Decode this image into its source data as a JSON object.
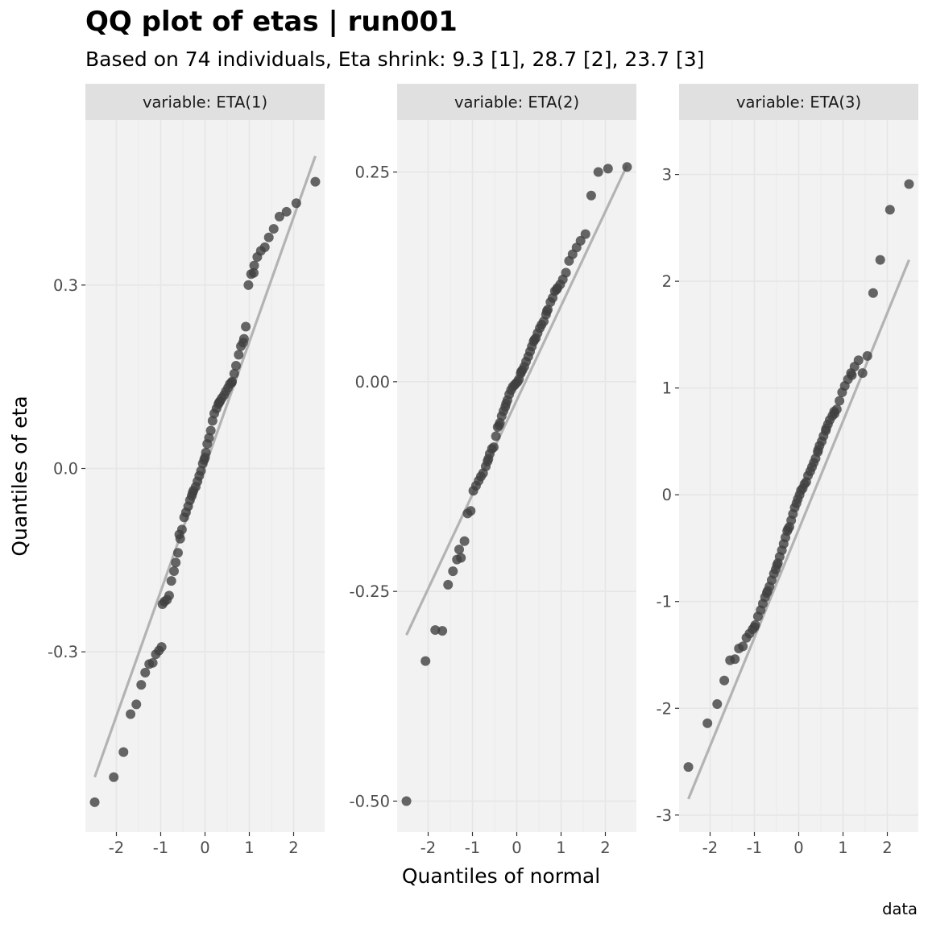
{
  "title": "QQ plot of etas | run001",
  "subtitle": "Based on 74 individuals, Eta shrink: 9.3 [1], 28.7 [2], 23.7 [3]",
  "caption": "data",
  "colors": {
    "panel_bg": "#f2f2f2",
    "strip_bg": "#e0e0e0",
    "grid": "#e6e6e6",
    "point": "#404040",
    "line": "#b3b3b3"
  },
  "chart_data": {
    "type": "scatter",
    "xlabel": "Quantiles of normal",
    "ylabel": "Quantiles of eta",
    "grid": true,
    "facets": [
      {
        "strip": "variable: ETA(1)",
        "xlim": [
          -2.7,
          2.7
        ],
        "ylim": [
          -0.595,
          0.57
        ],
        "xticks": [
          -2,
          -1,
          0,
          1,
          2
        ],
        "xtick_labels": [
          "-2",
          "-1",
          "0",
          "1",
          "2"
        ],
        "yticks": [
          -0.3,
          0.0,
          0.3
        ],
        "ytick_labels": [
          "-0.3",
          "0.0",
          "0.3"
        ],
        "reference_line": [
          [
            -2.49,
            -0.505
          ],
          [
            2.49,
            0.511
          ]
        ],
        "points": [
          [
            -2.49,
            -0.546
          ],
          [
            -2.06,
            -0.505
          ],
          [
            -1.84,
            -0.464
          ],
          [
            -1.68,
            -0.402
          ],
          [
            -1.55,
            -0.386
          ],
          [
            -1.44,
            -0.354
          ],
          [
            -1.35,
            -0.334
          ],
          [
            -1.26,
            -0.32
          ],
          [
            -1.18,
            -0.318
          ],
          [
            -1.11,
            -0.304
          ],
          [
            -1.04,
            -0.298
          ],
          [
            -0.98,
            -0.292
          ],
          [
            -0.92,
            -0.218
          ],
          [
            -0.86,
            -0.215
          ],
          [
            -0.81,
            -0.208
          ],
          [
            -0.76,
            -0.184
          ],
          [
            -0.7,
            -0.168
          ],
          [
            -0.66,
            -0.154
          ],
          [
            -0.61,
            -0.138
          ],
          [
            -0.56,
            -0.115
          ],
          [
            -0.52,
            -0.1
          ],
          [
            -0.47,
            -0.08
          ],
          [
            -0.43,
            -0.072
          ],
          [
            -0.38,
            -0.062
          ],
          [
            -0.34,
            -0.052
          ],
          [
            -0.3,
            -0.045
          ],
          [
            -0.26,
            -0.036
          ],
          [
            -0.21,
            -0.03
          ],
          [
            -0.17,
            -0.021
          ],
          [
            -0.13,
            -0.012
          ],
          [
            -0.09,
            -0.004
          ],
          [
            -0.05,
            0.008
          ],
          [
            -0.02,
            0.014
          ],
          [
            0.02,
            0.026
          ],
          [
            0.05,
            0.04
          ],
          [
            0.09,
            0.05
          ],
          [
            0.13,
            0.062
          ],
          [
            0.17,
            0.078
          ],
          [
            0.21,
            0.09
          ],
          [
            0.26,
            0.098
          ],
          [
            0.3,
            0.105
          ],
          [
            0.34,
            0.11
          ],
          [
            0.38,
            0.115
          ],
          [
            0.43,
            0.12
          ],
          [
            0.47,
            0.126
          ],
          [
            0.52,
            0.132
          ],
          [
            0.56,
            0.138
          ],
          [
            0.61,
            0.142
          ],
          [
            0.66,
            0.155
          ],
          [
            0.7,
            0.168
          ],
          [
            0.76,
            0.186
          ],
          [
            0.81,
            0.2
          ],
          [
            0.86,
            0.206
          ],
          [
            0.92,
            0.232
          ],
          [
            0.98,
            0.3
          ],
          [
            1.04,
            0.318
          ],
          [
            1.11,
            0.332
          ],
          [
            1.18,
            0.346
          ],
          [
            1.26,
            0.356
          ],
          [
            1.35,
            0.362
          ],
          [
            1.44,
            0.378
          ],
          [
            1.55,
            0.392
          ],
          [
            1.68,
            0.412
          ],
          [
            1.84,
            0.42
          ],
          [
            2.06,
            0.434
          ],
          [
            2.49,
            0.469
          ],
          [
            0.0,
            0.018
          ],
          [
            -0.28,
            -0.04
          ],
          [
            0.32,
            0.108
          ],
          [
            0.88,
            0.212
          ],
          [
            -0.58,
            -0.108
          ],
          [
            0.6,
            0.14
          ],
          [
            1.1,
            0.32
          ],
          [
            -0.96,
            -0.222
          ]
        ]
      },
      {
        "strip": "variable: ETA(2)",
        "xlim": [
          -2.7,
          2.7
        ],
        "ylim": [
          -0.537,
          0.312
        ],
        "xticks": [
          -2,
          -1,
          0,
          1,
          2
        ],
        "xtick_labels": [
          "-2",
          "-1",
          "0",
          "1",
          "2"
        ],
        "yticks": [
          -0.5,
          -0.25,
          0.0,
          0.25
        ],
        "ytick_labels": [
          "-0.50",
          "-0.25",
          "0.00",
          "0.25"
        ],
        "reference_line": [
          [
            -2.49,
            -0.302
          ],
          [
            2.49,
            0.258
          ]
        ],
        "points": [
          [
            -2.49,
            -0.5
          ],
          [
            -2.06,
            -0.333
          ],
          [
            -1.84,
            -0.296
          ],
          [
            -1.68,
            -0.297
          ],
          [
            -1.55,
            -0.242
          ],
          [
            -1.44,
            -0.226
          ],
          [
            -1.35,
            -0.212
          ],
          [
            -1.26,
            -0.21
          ],
          [
            -1.18,
            -0.19
          ],
          [
            -1.11,
            -0.157
          ],
          [
            -1.04,
            -0.154
          ],
          [
            -0.98,
            -0.13
          ],
          [
            -0.92,
            -0.124
          ],
          [
            -0.86,
            -0.118
          ],
          [
            -0.81,
            -0.113
          ],
          [
            -0.76,
            -0.109
          ],
          [
            -0.7,
            -0.101
          ],
          [
            -0.66,
            -0.095
          ],
          [
            -0.61,
            -0.086
          ],
          [
            -0.56,
            -0.08
          ],
          [
            -0.52,
            -0.078
          ],
          [
            -0.47,
            -0.065
          ],
          [
            -0.43,
            -0.054
          ],
          [
            -0.38,
            -0.049
          ],
          [
            -0.34,
            -0.041
          ],
          [
            -0.3,
            -0.035
          ],
          [
            -0.26,
            -0.03
          ],
          [
            -0.21,
            -0.022
          ],
          [
            -0.17,
            -0.015
          ],
          [
            -0.13,
            -0.01
          ],
          [
            -0.09,
            -0.006
          ],
          [
            -0.05,
            -0.004
          ],
          [
            -0.02,
            -0.002
          ],
          [
            0.02,
            0.0
          ],
          [
            0.05,
            0.003
          ],
          [
            0.09,
            0.01
          ],
          [
            0.13,
            0.014
          ],
          [
            0.17,
            0.018
          ],
          [
            0.21,
            0.024
          ],
          [
            0.26,
            0.03
          ],
          [
            0.3,
            0.036
          ],
          [
            0.34,
            0.042
          ],
          [
            0.38,
            0.048
          ],
          [
            0.43,
            0.052
          ],
          [
            0.47,
            0.058
          ],
          [
            0.52,
            0.064
          ],
          [
            0.56,
            0.068
          ],
          [
            0.61,
            0.072
          ],
          [
            0.66,
            0.08
          ],
          [
            0.7,
            0.086
          ],
          [
            0.76,
            0.095
          ],
          [
            0.81,
            0.1
          ],
          [
            0.86,
            0.108
          ],
          [
            0.92,
            0.112
          ],
          [
            0.98,
            0.116
          ],
          [
            1.04,
            0.122
          ],
          [
            1.11,
            0.13
          ],
          [
            1.18,
            0.144
          ],
          [
            1.26,
            0.152
          ],
          [
            1.35,
            0.16
          ],
          [
            1.44,
            0.168
          ],
          [
            1.55,
            0.176
          ],
          [
            1.68,
            0.222
          ],
          [
            1.84,
            0.25
          ],
          [
            2.06,
            0.254
          ],
          [
            2.49,
            0.256
          ],
          [
            0.4,
            0.05
          ],
          [
            -0.24,
            -0.026
          ],
          [
            0.68,
            0.084
          ],
          [
            -0.64,
            -0.092
          ],
          [
            0.1,
            0.012
          ],
          [
            -0.4,
            -0.052
          ],
          [
            0.9,
            0.11
          ],
          [
            -1.3,
            -0.2
          ]
        ]
      },
      {
        "strip": "variable: ETA(3)",
        "xlim": [
          -2.7,
          2.7
        ],
        "ylim": [
          -3.16,
          3.51
        ],
        "xticks": [
          -2,
          -1,
          0,
          1,
          2
        ],
        "xtick_labels": [
          "-2",
          "-1",
          "0",
          "1",
          "2"
        ],
        "yticks": [
          -3,
          -2,
          -1,
          0,
          1,
          2,
          3
        ],
        "ytick_labels": [
          "-3",
          "-2",
          "-1",
          "0",
          "1",
          "2",
          "3"
        ],
        "reference_line": [
          [
            -2.49,
            -2.85
          ],
          [
            2.49,
            2.2
          ]
        ],
        "points": [
          [
            -2.49,
            -2.55
          ],
          [
            -2.06,
            -2.14
          ],
          [
            -1.84,
            -1.96
          ],
          [
            -1.68,
            -1.74
          ],
          [
            -1.55,
            -1.55
          ],
          [
            -1.44,
            -1.54
          ],
          [
            -1.35,
            -1.44
          ],
          [
            -1.26,
            -1.42
          ],
          [
            -1.18,
            -1.34
          ],
          [
            -1.11,
            -1.3
          ],
          [
            -1.04,
            -1.26
          ],
          [
            -0.98,
            -1.22
          ],
          [
            -0.92,
            -1.14
          ],
          [
            -0.86,
            -1.08
          ],
          [
            -0.81,
            -1.02
          ],
          [
            -0.76,
            -0.96
          ],
          [
            -0.7,
            -0.9
          ],
          [
            -0.66,
            -0.86
          ],
          [
            -0.61,
            -0.8
          ],
          [
            -0.56,
            -0.74
          ],
          [
            -0.52,
            -0.7
          ],
          [
            -0.47,
            -0.64
          ],
          [
            -0.43,
            -0.58
          ],
          [
            -0.38,
            -0.52
          ],
          [
            -0.34,
            -0.46
          ],
          [
            -0.3,
            -0.4
          ],
          [
            -0.26,
            -0.34
          ],
          [
            -0.21,
            -0.3
          ],
          [
            -0.17,
            -0.24
          ],
          [
            -0.13,
            -0.18
          ],
          [
            -0.09,
            -0.12
          ],
          [
            -0.05,
            -0.08
          ],
          [
            -0.02,
            -0.04
          ],
          [
            0.02,
            0.0
          ],
          [
            0.05,
            0.04
          ],
          [
            0.09,
            0.06
          ],
          [
            0.13,
            0.1
          ],
          [
            0.17,
            0.12
          ],
          [
            0.21,
            0.18
          ],
          [
            0.26,
            0.22
          ],
          [
            0.3,
            0.26
          ],
          [
            0.34,
            0.3
          ],
          [
            0.38,
            0.34
          ],
          [
            0.43,
            0.4
          ],
          [
            0.47,
            0.46
          ],
          [
            0.52,
            0.5
          ],
          [
            0.56,
            0.55
          ],
          [
            0.61,
            0.6
          ],
          [
            0.66,
            0.66
          ],
          [
            0.7,
            0.7
          ],
          [
            0.76,
            0.74
          ],
          [
            0.81,
            0.76
          ],
          [
            0.86,
            0.8
          ],
          [
            0.92,
            0.88
          ],
          [
            0.98,
            0.96
          ],
          [
            1.04,
            1.02
          ],
          [
            1.11,
            1.08
          ],
          [
            1.18,
            1.14
          ],
          [
            1.26,
            1.2
          ],
          [
            1.35,
            1.26
          ],
          [
            1.44,
            1.14
          ],
          [
            1.55,
            1.3
          ],
          [
            1.68,
            1.89
          ],
          [
            1.84,
            2.2
          ],
          [
            2.06,
            2.67
          ],
          [
            2.49,
            2.91
          ],
          [
            -0.49,
            -0.66
          ],
          [
            0.44,
            0.42
          ],
          [
            -1.0,
            -1.24
          ],
          [
            0.8,
            0.78
          ],
          [
            -0.24,
            -0.32
          ],
          [
            1.2,
            1.12
          ],
          [
            -0.72,
            -0.92
          ],
          [
            0.62,
            0.62
          ]
        ]
      }
    ]
  }
}
